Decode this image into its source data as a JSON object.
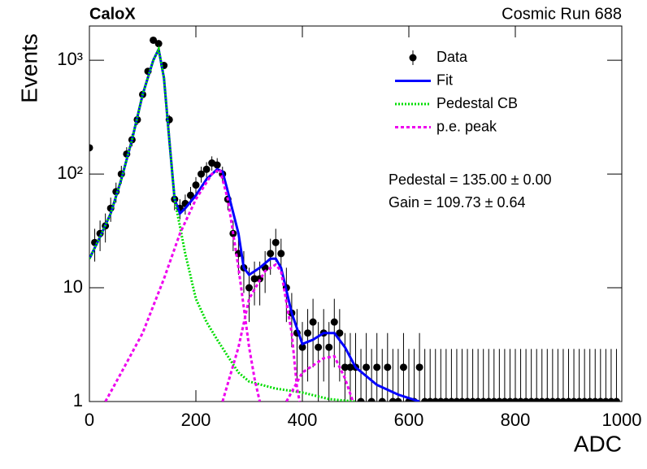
{
  "chart_data": {
    "type": "scatter",
    "title": "CaloX",
    "subtitle": "Cosmic Run 688",
    "x_label": "ADC",
    "y_label": "Events",
    "log_y": true,
    "xlim": [
      0,
      1000
    ],
    "xticks": [
      0,
      200,
      400,
      600,
      800,
      1000
    ],
    "ylim": [
      1,
      2000
    ],
    "yticks": [
      1,
      10,
      {
        "value": 100,
        "label": "10²"
      },
      {
        "value": 1000,
        "label": "10³"
      }
    ],
    "annotations": [
      "Pedestal = 135.00 ± 0.00",
      "Gain = 109.73 ± 0.64"
    ],
    "legend": "top-right",
    "series": [
      {
        "name": "Data",
        "color": "#000000",
        "type": "scatter",
        "x": [
          0,
          10,
          20,
          30,
          40,
          50,
          60,
          70,
          80,
          90,
          100,
          110,
          120,
          130,
          140,
          150,
          160,
          170,
          180,
          190,
          200,
          210,
          220,
          230,
          240,
          250,
          260,
          270,
          280,
          290,
          300,
          310,
          320,
          330,
          340,
          350,
          360,
          370,
          380,
          390,
          400,
          410,
          420,
          430,
          440,
          450,
          460,
          470,
          480,
          490,
          500,
          510,
          520,
          530,
          540,
          550,
          560,
          570,
          580,
          590,
          600,
          610,
          620,
          630,
          640,
          650,
          660,
          670,
          680,
          690,
          700,
          710,
          720,
          730,
          740,
          750,
          760,
          770,
          780,
          790,
          800,
          810,
          820,
          830,
          840,
          850,
          860,
          870,
          880,
          890,
          900,
          910,
          920,
          930,
          940,
          950,
          960,
          970,
          980,
          990
        ],
        "values": [
          170,
          25,
          30,
          35,
          50,
          70,
          100,
          150,
          200,
          300,
          500,
          800,
          1500,
          1400,
          900,
          300,
          60,
          50,
          55,
          65,
          80,
          100,
          110,
          125,
          120,
          100,
          60,
          30,
          20,
          15,
          10,
          12,
          12,
          15,
          20,
          25,
          20,
          10,
          6,
          4,
          3,
          4,
          5,
          3,
          4,
          3,
          5,
          4,
          2,
          2,
          2,
          1,
          2,
          1,
          2,
          1,
          2,
          1,
          1,
          2,
          1,
          1,
          2,
          1,
          1,
          1,
          1,
          1,
          1,
          1,
          1,
          1,
          1,
          1,
          1,
          1,
          1,
          1,
          1,
          1,
          1,
          1,
          1,
          1,
          1,
          1,
          1,
          1,
          1,
          1,
          1,
          1,
          1,
          1,
          1,
          1,
          1,
          1,
          1,
          1
        ],
        "errors": [
          25,
          8,
          9,
          10,
          12,
          14,
          18,
          22,
          25,
          30,
          40,
          50,
          70,
          70,
          55,
          30,
          12,
          10,
          11,
          12,
          14,
          16,
          17,
          18,
          18,
          16,
          12,
          9,
          7,
          6,
          5,
          5,
          5,
          6,
          7,
          8,
          7,
          5,
          3,
          2.5,
          2,
          2.5,
          3,
          2,
          2.5,
          2,
          3,
          2.5,
          2,
          2,
          2,
          1.9,
          2,
          1.9,
          2,
          1.9,
          2,
          1.9,
          1.9,
          2,
          1.9,
          1.9,
          2,
          1.9,
          1.9,
          1.9,
          1.9,
          1.9,
          1.9,
          1.9,
          1.9,
          1.9,
          1.9,
          1.9,
          1.9,
          1.9,
          1.9,
          1.9,
          1.9,
          1.9,
          1.9,
          1.9,
          1.9,
          1.9,
          1.9,
          1.9,
          1.9,
          1.9,
          1.9,
          1.9,
          1.9,
          1.9,
          1.9,
          1.9,
          1.9,
          1.9,
          1.9,
          1.9,
          1.9,
          1.9
        ]
      },
      {
        "name": "Fit",
        "color": "#0000ff",
        "type": "line",
        "style": "solid",
        "x": [
          0,
          20,
          40,
          60,
          80,
          100,
          120,
          130,
          140,
          150,
          160,
          170,
          180,
          200,
          220,
          240,
          250,
          260,
          280,
          290,
          300,
          320,
          340,
          350,
          360,
          380,
          400,
          420,
          440,
          460,
          480,
          500,
          540,
          580,
          620
        ],
        "values": [
          18,
          28,
          45,
          90,
          200,
          500,
          1000,
          1250,
          700,
          200,
          60,
          45,
          50,
          65,
          90,
          110,
          105,
          70,
          30,
          15,
          13,
          15,
          18,
          18,
          15,
          6,
          3.2,
          3.5,
          4,
          4,
          3,
          2,
          1.4,
          1.15,
          1
        ]
      },
      {
        "name": "Pedestal CB",
        "color": "#00dd00",
        "type": "line",
        "style": "dotted",
        "x": [
          0,
          20,
          40,
          60,
          80,
          100,
          120,
          130,
          140,
          150,
          160,
          180,
          200,
          220,
          240,
          260,
          280,
          300,
          350,
          400,
          450,
          500
        ],
        "values": [
          18,
          28,
          45,
          90,
          200,
          500,
          1000,
          1250,
          700,
          200,
          60,
          20,
          8,
          5,
          3.5,
          2.5,
          1.8,
          1.5,
          1.3,
          1.2,
          1.05,
          1
        ]
      },
      {
        "name": "p.e. peak",
        "color": "#ee00ee",
        "type": "line",
        "style": "dashed",
        "x": [
          30,
          60,
          100,
          140,
          170,
          200,
          230,
          245,
          260,
          280,
          300,
          310,
          320,
          320,
          250,
          280,
          300,
          330,
          350,
          360,
          380,
          390,
          395,
          395,
          370,
          400,
          440,
          460,
          480,
          495
        ],
        "values": [
          1,
          1.8,
          4,
          12,
          30,
          60,
          100,
          110,
          60,
          15,
          3,
          1.6,
          1,
          null,
          1,
          3,
          8,
          14,
          16,
          14,
          4,
          1.3,
          1,
          null,
          1,
          1.8,
          2.4,
          2.5,
          1.6,
          1
        ]
      }
    ]
  }
}
